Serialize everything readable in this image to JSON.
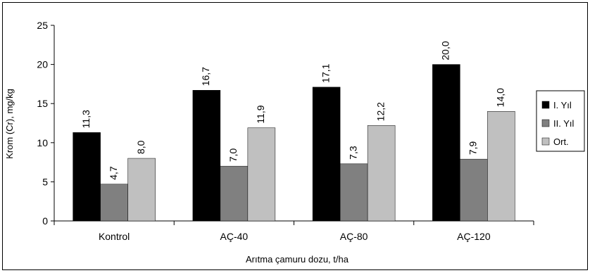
{
  "chart_data": {
    "type": "bar",
    "title": "",
    "xlabel": "Arıtma çamuru dozu, t/ha",
    "ylabel": "Krom (Cr), mg/kg",
    "categories": [
      "Kontrol",
      "AÇ-40",
      "AÇ-80",
      "AÇ-120"
    ],
    "series": [
      {
        "name": "I. Yıl",
        "color": "#000000",
        "values": [
          11.3,
          16.7,
          17.1,
          20.0
        ],
        "labels": [
          "11,3",
          "16,7",
          "17,1",
          "20,0"
        ]
      },
      {
        "name": "II. Yıl",
        "color": "#808080",
        "values": [
          4.7,
          7.0,
          7.3,
          7.9
        ],
        "labels": [
          "4,7",
          "7,0",
          "7,3",
          "7,9"
        ]
      },
      {
        "name": "Ort.",
        "color": "#c0c0c0",
        "values": [
          8.0,
          11.9,
          12.2,
          14.0
        ],
        "labels": [
          "8,0",
          "11,9",
          "12,2",
          "14,0"
        ]
      }
    ],
    "ylim": [
      0,
      25
    ],
    "yticks": [
      0,
      5,
      10,
      15,
      20,
      25
    ],
    "grid": false,
    "legend_position": "right"
  }
}
